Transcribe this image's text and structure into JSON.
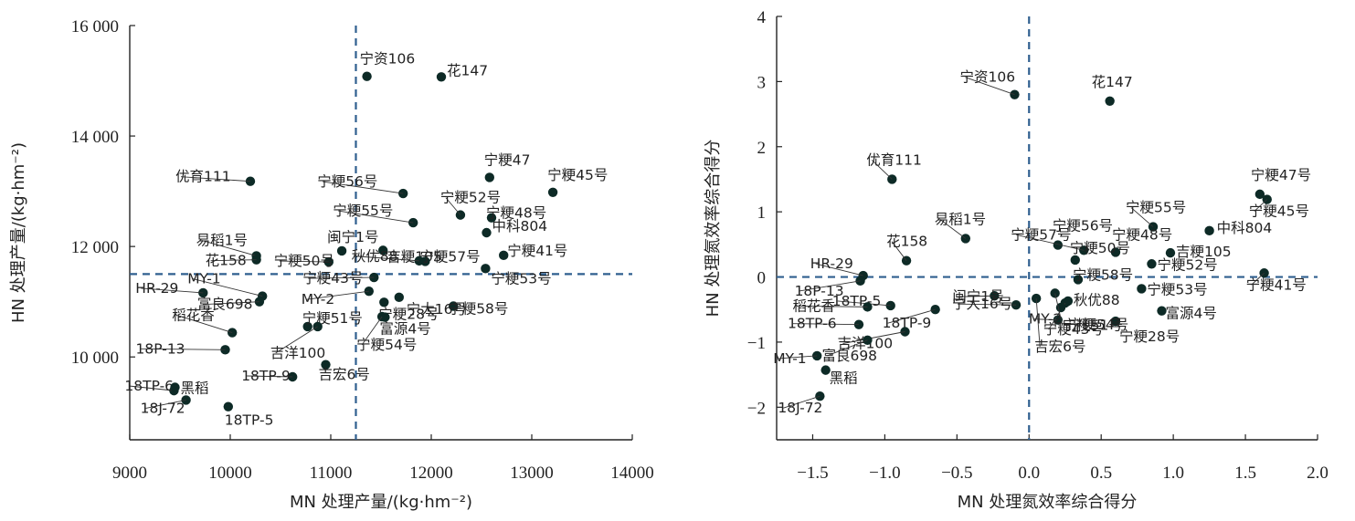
{
  "chart_data": [
    {
      "type": "scatter",
      "xlabel": "MN 处理产量/(kg·hm⁻²)",
      "ylabel": "HN 处理产量/(kg·hm⁻²)",
      "xlim": [
        9000,
        14000
      ],
      "ylim": [
        8500,
        16000
      ],
      "x_ticks": [
        "9000",
        "10000",
        "11000",
        "12000",
        "13000",
        "14000"
      ],
      "y_ticks": [
        "10 000",
        "12 000",
        "14 000",
        "16 000"
      ],
      "y_tick_values": [
        10000,
        12000,
        14000,
        16000
      ],
      "reference_lines": {
        "x": 11250,
        "y": 11500
      },
      "points": [
        {
          "label": "宁资106",
          "x": 11360,
          "y": 15080
        },
        {
          "label": "花147",
          "x": 12100,
          "y": 15070
        },
        {
          "label": "宁粳47",
          "x": 12580,
          "y": 13250
        },
        {
          "label": "宁粳45号",
          "x": 13210,
          "y": 12980
        },
        {
          "label": "优育111",
          "x": 10200,
          "y": 13180
        },
        {
          "label": "宁粳56号",
          "x": 11720,
          "y": 12960
        },
        {
          "label": "宁粳52号",
          "x": 12290,
          "y": 12570
        },
        {
          "label": "宁粳55号",
          "x": 11820,
          "y": 12430
        },
        {
          "label": "宁粳48号",
          "x": 12600,
          "y": 12520
        },
        {
          "label": "中科804",
          "x": 12550,
          "y": 12250
        },
        {
          "label": "闽宁1号",
          "x": 11110,
          "y": 11920
        },
        {
          "label": "吉粳105",
          "x": 11520,
          "y": 11930
        },
        {
          "label": "易稻1号",
          "x": 10260,
          "y": 11830
        },
        {
          "label": "花158",
          "x": 10260,
          "y": 11760
        },
        {
          "label": "宁粳50号",
          "x": 10980,
          "y": 11720
        },
        {
          "label": "秋优88",
          "x": 11880,
          "y": 11740
        },
        {
          "label": "宁粳57号",
          "x": 11940,
          "y": 11730
        },
        {
          "label": "宁粳41号",
          "x": 12720,
          "y": 11840
        },
        {
          "label": "宁粳53号",
          "x": 12540,
          "y": 11600
        },
        {
          "label": "宁粳43号",
          "x": 11430,
          "y": 11440
        },
        {
          "label": "MY-1",
          "x": 10320,
          "y": 11100
        },
        {
          "label": "MY-2",
          "x": 11380,
          "y": 11190
        },
        {
          "label": "HR-29",
          "x": 9730,
          "y": 11160
        },
        {
          "label": "富良698",
          "x": 10290,
          "y": 11000
        },
        {
          "label": "宁粳28号",
          "x": 11530,
          "y": 10990
        },
        {
          "label": "宁粳58号",
          "x": 12220,
          "y": 10920
        },
        {
          "label": "宁粳51号",
          "x": 10770,
          "y": 10550
        },
        {
          "label": "宁大16号",
          "x": 11680,
          "y": 11080
        },
        {
          "label": "稻花香",
          "x": 10020,
          "y": 10440
        },
        {
          "label": "富源4号",
          "x": 11540,
          "y": 10720
        },
        {
          "label": "吉洋100",
          "x": 10870,
          "y": 10550
        },
        {
          "label": "宁粳54号",
          "x": 11510,
          "y": 10730
        },
        {
          "label": "18P-13",
          "x": 9950,
          "y": 10130
        },
        {
          "label": "18TP-6",
          "x": 9440,
          "y": 9390
        },
        {
          "label": "黑稻",
          "x": 9450,
          "y": 9450
        },
        {
          "label": "18TP-9",
          "x": 10620,
          "y": 9640
        },
        {
          "label": "吉宏6号",
          "x": 10950,
          "y": 9860
        },
        {
          "label": "18J-72",
          "x": 9560,
          "y": 9220
        },
        {
          "label": "18TP-5",
          "x": 9980,
          "y": 9100
        }
      ]
    },
    {
      "type": "scatter",
      "xlabel": "MN 处理氮效率综合得分",
      "ylabel": "HN 处理氮效率综合得分",
      "xlim": [
        -1.75,
        2.0
      ],
      "ylim": [
        -2.5,
        4.0
      ],
      "x_ticks": [
        "−1.5",
        "−1.0",
        "−0.5",
        "0.0",
        "0.5",
        "1.0",
        "1.5",
        "2.0"
      ],
      "x_tick_values": [
        -1.5,
        -1.0,
        -0.5,
        0.0,
        0.5,
        1.0,
        1.5,
        2.0
      ],
      "y_ticks": [
        "−2",
        "−1",
        "0",
        "1",
        "2",
        "3",
        "4"
      ],
      "y_tick_values": [
        -2,
        -1,
        0,
        1,
        2,
        3,
        4
      ],
      "reference_lines": {
        "x": 0.0,
        "y": 0.0
      },
      "points": [
        {
          "label": "宁资106",
          "x": -0.1,
          "y": 2.8
        },
        {
          "label": "花147",
          "x": 0.56,
          "y": 2.7
        },
        {
          "label": "宁粳47号",
          "x": 1.6,
          "y": 1.27
        },
        {
          "label": "宁粳45号",
          "x": 1.65,
          "y": 1.19
        },
        {
          "label": "优育111",
          "x": -0.95,
          "y": 1.5
        },
        {
          "label": "宁粳55号",
          "x": 0.86,
          "y": 0.77
        },
        {
          "label": "中科804",
          "x": 1.25,
          "y": 0.71
        },
        {
          "label": "易稻1号",
          "x": -0.44,
          "y": 0.59
        },
        {
          "label": "宁粳56号",
          "x": 0.2,
          "y": 0.49
        },
        {
          "label": "宁粳57号",
          "x": 0.38,
          "y": 0.41
        },
        {
          "label": "宁粳48号",
          "x": 0.6,
          "y": 0.38
        },
        {
          "label": "吉粳105",
          "x": 0.98,
          "y": 0.37
        },
        {
          "label": "花158",
          "x": -0.85,
          "y": 0.25
        },
        {
          "label": "宁粳50号",
          "x": 0.32,
          "y": 0.26
        },
        {
          "label": "宁粳52号",
          "x": 0.85,
          "y": 0.2
        },
        {
          "label": "宁粳41号",
          "x": 1.63,
          "y": 0.06
        },
        {
          "label": "HR-29",
          "x": -1.15,
          "y": 0.02
        },
        {
          "label": "18P-13",
          "x": -1.17,
          "y": -0.06
        },
        {
          "label": "宁粳58号",
          "x": 0.34,
          "y": -0.04
        },
        {
          "label": "宁粳53号",
          "x": 0.78,
          "y": -0.18
        },
        {
          "label": "闽宁1号",
          "x": -0.24,
          "y": -0.29
        },
        {
          "label": "秋优88",
          "x": 0.27,
          "y": -0.37
        },
        {
          "label": "18TP-5",
          "x": -0.96,
          "y": -0.44
        },
        {
          "label": "稻花香",
          "x": -1.12,
          "y": -0.46
        },
        {
          "label": "宁大16号",
          "x": -0.09,
          "y": -0.43
        },
        {
          "label": "富源4号",
          "x": 0.92,
          "y": -0.52
        },
        {
          "label": "18TP-6",
          "x": -1.18,
          "y": -0.73
        },
        {
          "label": "MY-2",
          "x": 0.2,
          "y": -0.66
        },
        {
          "label": "宁粳43号",
          "x": 0.25,
          "y": -0.4
        },
        {
          "label": "宁粳28号",
          "x": 0.6,
          "y": -0.68
        },
        {
          "label": "宁粳54号",
          "x": 0.22,
          "y": -0.47
        },
        {
          "label": "宁粳51号",
          "x": 0.18,
          "y": -0.25
        },
        {
          "label": "吉宏6号",
          "x": 0.05,
          "y": -0.33
        },
        {
          "label": "18TP-9",
          "x": -0.65,
          "y": -0.5
        },
        {
          "label": "吉洋100",
          "x": -0.86,
          "y": -0.84
        },
        {
          "label": "富良698",
          "x": -1.12,
          "y": -0.97
        },
        {
          "label": "MY-1",
          "x": -1.47,
          "y": -1.21
        },
        {
          "label": "黑稻",
          "x": -1.41,
          "y": -1.43
        },
        {
          "label": "18J-72",
          "x": -1.45,
          "y": -1.83
        }
      ]
    }
  ]
}
